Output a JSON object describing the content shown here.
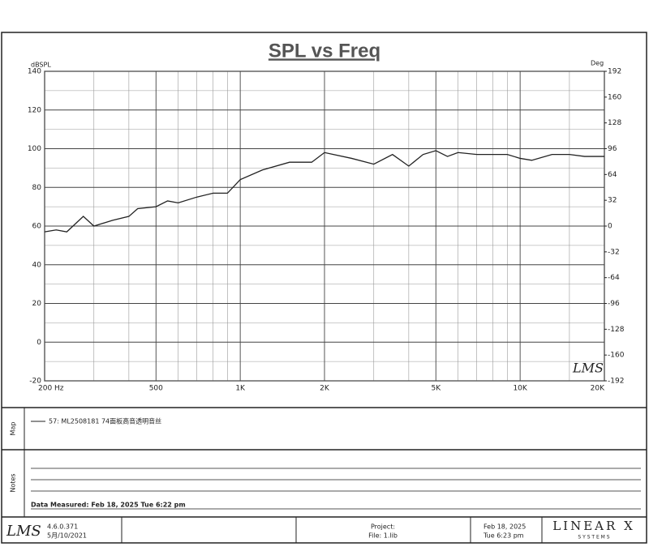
{
  "chart_data": {
    "type": "line",
    "title": "SPL vs Freq",
    "ylabel": "dBSPL",
    "y2label": "Deg",
    "watermark": "LMS",
    "log_x": true,
    "grid": true,
    "x": [
      200,
      220,
      240,
      275,
      300,
      350,
      400,
      430,
      500,
      550,
      600,
      700,
      800,
      900,
      1000,
      1200,
      1500,
      1800,
      2000,
      2500,
      3000,
      3500,
      4000,
      4500,
      5000,
      5500,
      6000,
      7000,
      8000,
      9000,
      10000,
      11000,
      13000,
      15000,
      17000,
      20000
    ],
    "series": [
      {
        "name": "57: ML2508181 74面板高音透明音丝",
        "color": "#222222",
        "values": [
          57,
          58,
          57,
          65,
          60,
          63,
          65,
          69,
          70,
          73,
          72,
          75,
          77,
          77,
          84,
          89,
          93,
          93,
          98,
          95,
          92,
          97,
          91,
          97,
          99,
          96,
          98,
          97,
          97,
          97,
          95,
          94,
          97,
          97,
          96,
          96
        ]
      }
    ],
    "xlim": [
      200,
      20000
    ],
    "xticks": [
      {
        "value": 200,
        "label": "200 Hz"
      },
      500,
      {
        "value": 1000,
        "label": "1K"
      },
      {
        "value": 2000,
        "label": "2K"
      },
      {
        "value": 5000,
        "label": "5K"
      },
      {
        "value": 10000,
        "label": "10K"
      },
      {
        "value": 20000,
        "label": "20K"
      }
    ],
    "x_minor_grid": [
      300,
      400,
      600,
      700,
      800,
      900,
      3000,
      4000,
      6000,
      7000,
      8000,
      9000,
      15000
    ],
    "ylim": [
      -20,
      140
    ],
    "yticks": [
      -20,
      0,
      20,
      40,
      60,
      80,
      100,
      120,
      140
    ],
    "y_minor_grid": [
      -10,
      10,
      30,
      50,
      70,
      90,
      110,
      130
    ],
    "y2lim": [
      -192,
      192
    ],
    "y2ticks": [
      -192,
      -160,
      -128,
      -96,
      -64,
      -32,
      0,
      32,
      64,
      96,
      128,
      160,
      192
    ]
  },
  "panels": {
    "map": "Map",
    "notes": "Notes",
    "measured": "Data Measured: Feb 18, 2025  Tue  6:22 pm"
  },
  "footer": {
    "logo": "LMS",
    "version": "4.6.0.371",
    "build_date": "5月/10/2021",
    "project": "Project:",
    "file": "File: 1.lib",
    "date": "Feb 18, 2025",
    "time": "Tue  6:23 pm",
    "brand": "LINEAR X",
    "brand_sub": "S Y S T E M S"
  }
}
